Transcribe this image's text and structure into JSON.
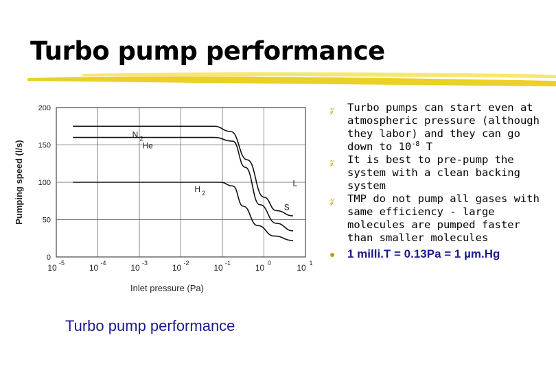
{
  "title": "Turbo pump performance",
  "caption": "Turbo pump performance",
  "bullets": [
    {
      "marker_icon": "z-bullet-icon",
      "text_before": "Turbo pumps can start even at atmospheric pressure (although they labor) and they can go down to  10",
      "exponent": "-8",
      "text_after": " T"
    },
    {
      "marker_icon": "z-bullet-icon",
      "text": "It is best to pre-pump the system with a clean backing system"
    },
    {
      "marker_icon": "z-bullet-icon",
      "text": "TMP do not pump all gases with same efficiency - large molecules are pumped faster than smaller molecules"
    }
  ],
  "sub_bullet": {
    "marker_icon": "dot-bullet-icon",
    "text": "1 milli.T = 0.13Pa = 1 µm.Hg"
  },
  "colors": {
    "title": "#000000",
    "caption": "#1c1a8c",
    "accent_bar": "#e8c800",
    "sub_bullet": "#1c1a8c"
  },
  "chart_data": {
    "type": "line",
    "xlabel": "Inlet pressure (Pa)",
    "ylabel": "Pumping speed (l/s)",
    "x_scale": "log",
    "x_ticks": [
      {
        "base": "10",
        "exp": "-5"
      },
      {
        "base": "10",
        "exp": "-4"
      },
      {
        "base": "10",
        "exp": "-3"
      },
      {
        "base": "10",
        "exp": "-2"
      },
      {
        "base": "10",
        "exp": "-1"
      },
      {
        "base": "10",
        "exp": "0"
      },
      {
        "base": "10",
        "exp": "1"
      }
    ],
    "y_ticks": [
      "0",
      "50",
      "100",
      "150",
      "200"
    ],
    "ylim": [
      0,
      200
    ],
    "xlim_log10": [
      -5,
      1
    ],
    "grid": true,
    "series": [
      {
        "name": "N2",
        "label_sub": "2",
        "label_base": "N",
        "points": [
          [
            -4.6,
            175
          ],
          [
            -1.2,
            175
          ],
          [
            -0.8,
            168
          ],
          [
            -0.4,
            130
          ],
          [
            0,
            80
          ],
          [
            0.3,
            62
          ],
          [
            0.7,
            55
          ]
        ]
      },
      {
        "name": "He",
        "label_sub": "",
        "label_base": "He",
        "points": [
          [
            -4.6,
            160
          ],
          [
            -1.2,
            160
          ],
          [
            -0.75,
            155
          ],
          [
            -0.45,
            120
          ],
          [
            -0.1,
            70
          ],
          [
            0.3,
            45
          ],
          [
            0.7,
            35
          ]
        ]
      },
      {
        "name": "H2",
        "label_sub": "2",
        "label_base": "H",
        "points": [
          [
            -4.6,
            100
          ],
          [
            -1.05,
            100
          ],
          [
            -0.75,
            95
          ],
          [
            -0.5,
            68
          ],
          [
            -0.15,
            42
          ],
          [
            0.25,
            28
          ],
          [
            0.7,
            22
          ]
        ]
      },
      {
        "name": "L",
        "label_sub": "",
        "label_base": "L",
        "points": []
      },
      {
        "name": "S",
        "label_sub": "",
        "label_base": "S",
        "points": []
      }
    ]
  }
}
